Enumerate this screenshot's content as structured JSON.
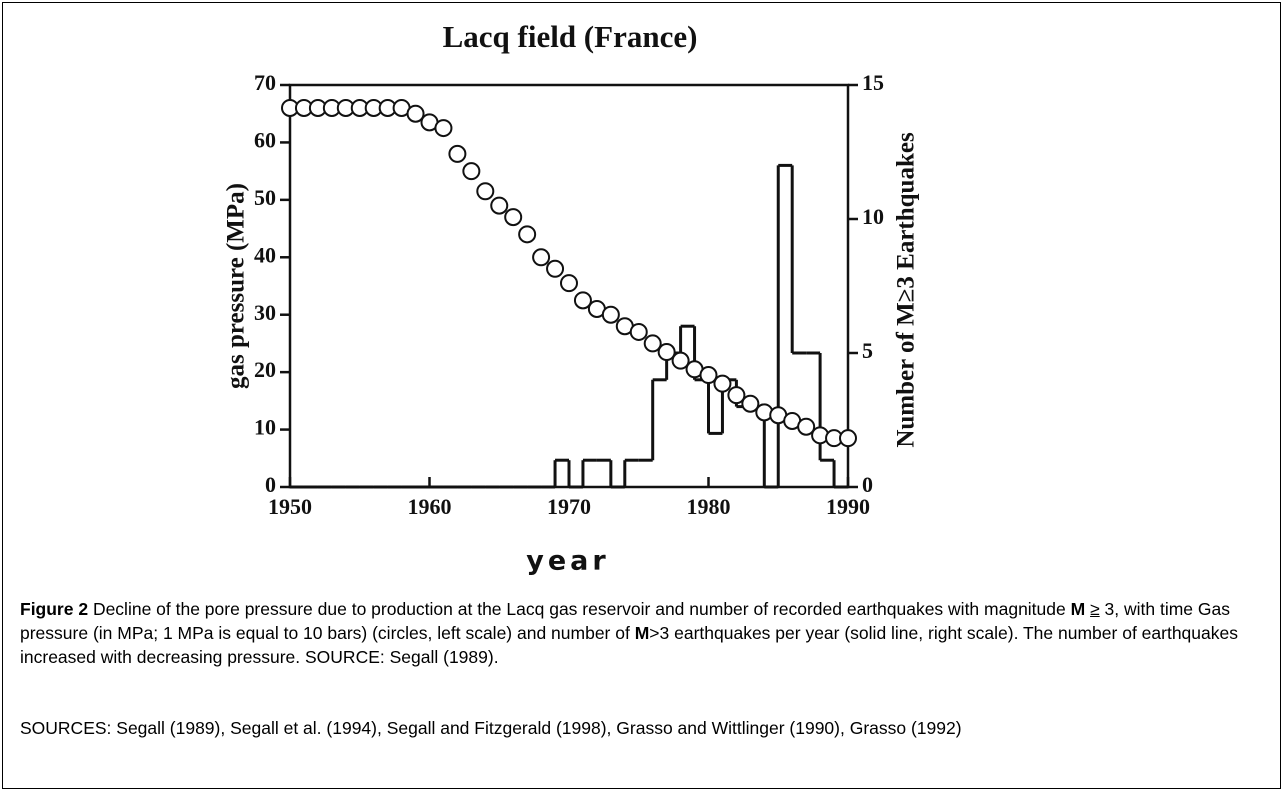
{
  "chart_data": {
    "type": "line",
    "title": "Lacq field (France)",
    "x_label": "year",
    "y_label": "gas pressure (MPa)",
    "y2_label": "Number of M≥3 Earthquakes",
    "x": [
      1950,
      1951,
      1952,
      1953,
      1954,
      1955,
      1956,
      1957,
      1958,
      1959,
      1960,
      1961,
      1962,
      1963,
      1964,
      1965,
      1966,
      1967,
      1968,
      1969,
      1970,
      1971,
      1972,
      1973,
      1974,
      1975,
      1976,
      1977,
      1978,
      1979,
      1980,
      1981,
      1982,
      1983,
      1984,
      1985,
      1986,
      1987,
      1988,
      1989,
      1990
    ],
    "series": [
      {
        "color": "#111111",
        "marker": "circle-open",
        "values": [
          66,
          66,
          66,
          66,
          66,
          66,
          66,
          66,
          66,
          65,
          63.5,
          62.5,
          58,
          55,
          51.5,
          49,
          47,
          44,
          40,
          38,
          35.5,
          32.5,
          31,
          30,
          28,
          27,
          25,
          23.5,
          22,
          20.5,
          19.5,
          18,
          16,
          14.5,
          13,
          12.5,
          11.5,
          10.5,
          9,
          8.5,
          8.5
        ]
      },
      {
        "color": "#111111",
        "axis": "y2",
        "step": "post",
        "values": [
          0,
          0,
          0,
          0,
          0,
          0,
          0,
          0,
          0,
          0,
          0,
          0,
          0,
          0,
          0,
          0,
          0,
          0,
          0,
          1,
          0,
          1,
          1,
          0,
          1,
          1,
          4,
          5,
          6,
          4,
          2,
          4,
          3,
          3,
          0,
          12,
          5,
          5,
          1,
          0,
          0
        ]
      }
    ],
    "xlim": [
      1950,
      1990
    ],
    "xticks": [
      1950,
      1960,
      1970,
      1980,
      1990
    ],
    "ylim": [
      0,
      70
    ],
    "yticks": [
      0,
      10,
      20,
      30,
      40,
      50,
      60,
      70
    ],
    "y2lim": [
      0,
      15
    ],
    "y2ticks": [
      0,
      5,
      10,
      15
    ]
  },
  "caption": {
    "label": "Figure 2",
    "text1": " Decline of the pore pressure due to production at the Lacq gas reservoir and number of recorded earthquakes with magnitude ",
    "m1": "M",
    "ge": "≥",
    "text2": " 3, with time Gas pressure (in MPa; 1 MPa is equal to 10 bars) (circles, left scale) and number of ",
    "m2": "M",
    "text3": ">3 earthquakes per year (solid line, right scale).  The number of earthquakes increased with decreasing pressure.  SOURCE: Segall (1989)."
  },
  "sources": "SOURCES: Segall (1989), Segall et al. (1994), Segall and Fitzgerald (1998), Grasso and Wittlinger (1990), Grasso (1992)"
}
